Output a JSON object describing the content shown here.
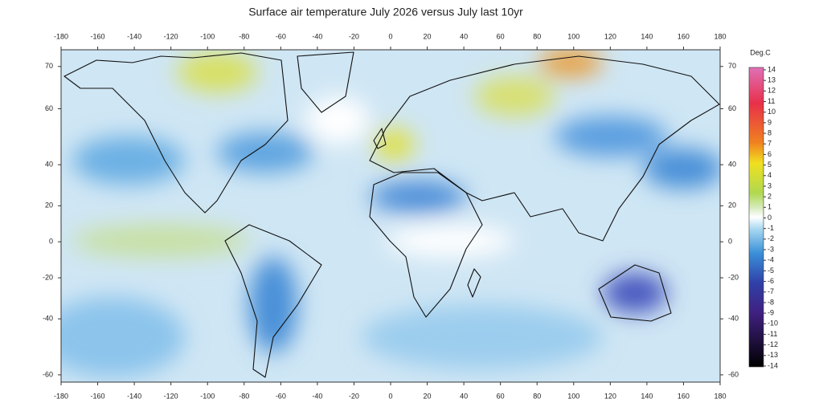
{
  "title": "Surface air temperature July 2026 versus July last 10yr",
  "map": {
    "xlim": [
      -180,
      180
    ],
    "ylim": [
      -62,
      73
    ],
    "xticks": [
      -180,
      -160,
      -140,
      -120,
      -100,
      -80,
      -60,
      -40,
      -20,
      0,
      20,
      40,
      60,
      80,
      100,
      120,
      140,
      160,
      180
    ],
    "yticks": [
      70,
      60,
      40,
      20,
      0,
      -20,
      -40,
      -60
    ]
  },
  "colorbar": {
    "label": "Deg.C",
    "ticks": [
      14,
      13,
      12,
      11,
      10,
      9,
      8,
      7,
      6,
      5,
      4,
      3,
      2,
      1,
      0,
      -1,
      -2,
      -3,
      -4,
      -5,
      -6,
      -7,
      -8,
      -9,
      -10,
      -11,
      -12,
      -13,
      -14
    ]
  }
}
